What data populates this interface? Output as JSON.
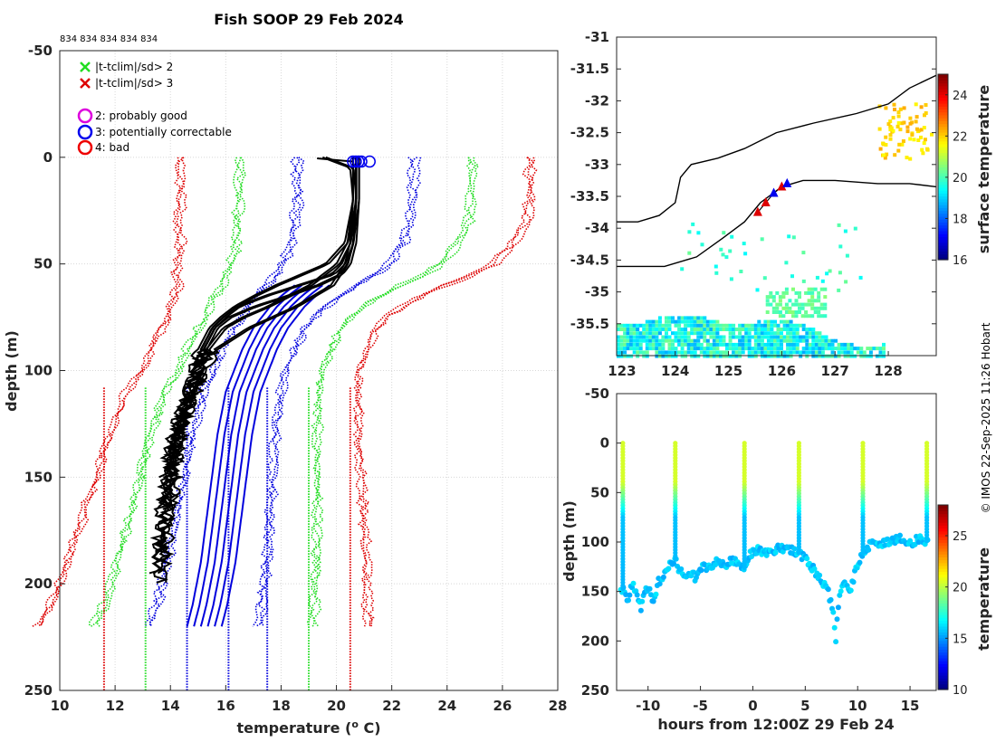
{
  "title": "Fish SOOP 29 Feb 2024",
  "probe_ids": "834 834 834 834 834",
  "credit": "© IMOS 22-Sep-2025 11:26 Hobart",
  "chart_data": [
    {
      "type": "line",
      "name": "profiles",
      "xlabel": "temperature (",
      "xlabel_sup": "o",
      "xlabel_end": " C)",
      "ylabel": "depth (m)",
      "xlim": [
        10,
        28
      ],
      "ylim": [
        -50,
        250
      ],
      "xticks": [
        10,
        12,
        14,
        16,
        18,
        20,
        22,
        24,
        26,
        28
      ],
      "yticks": [
        -50,
        0,
        50,
        100,
        150,
        200,
        250
      ],
      "legend": {
        "position": "top-left",
        "entries": [
          {
            "symbol": "x",
            "color": "#22dd22",
            "label": "|t-tclim|/sd> 2"
          },
          {
            "symbol": "x",
            "color": "#dd0000",
            "label": "|t-tclim|/sd> 3"
          },
          {
            "symbol": "o",
            "color": "#dd00dd",
            "label": "2: probably good"
          },
          {
            "symbol": "o",
            "color": "#0000ee",
            "label": "3: potentially correctable"
          },
          {
            "symbol": "o",
            "color": "#ee0000",
            "label": "4: bad"
          }
        ]
      },
      "climatology": {
        "depths": [
          0,
          10,
          20,
          30,
          40,
          50,
          55,
          60,
          65,
          70,
          75,
          80,
          90,
          100,
          110,
          130,
          150,
          170,
          190,
          210,
          220
        ],
        "mean": [
          20.7,
          20.7,
          20.7,
          20.6,
          20.4,
          20.0,
          19.6,
          19.1,
          18.6,
          18.2,
          17.9,
          17.6,
          17.2,
          16.9,
          16.6,
          16.3,
          16.1,
          15.9,
          15.7,
          15.4,
          15.2
        ],
        "sd": [
          2.1,
          2.1,
          2.1,
          2.1,
          2.0,
          1.9,
          1.8,
          1.6,
          1.5,
          1.4,
          1.3,
          1.3,
          1.3,
          1.3,
          1.4,
          1.5,
          1.6,
          1.7,
          1.8,
          1.9,
          2.0
        ],
        "sd_band_2_color": "#22dd22",
        "sd_band_3_color": "#dd0000",
        "mean_color": "#0000dd"
      },
      "vertical_limits": [
        {
          "x": 11.6,
          "color": "#dd0000"
        },
        {
          "x": 13.1,
          "color": "#22dd22"
        },
        {
          "x": 14.6,
          "color": "#0000dd"
        },
        {
          "x": 16.1,
          "color": "#0000dd"
        },
        {
          "x": 17.5,
          "color": "#0000dd"
        },
        {
          "x": 19.0,
          "color": "#22dd22"
        },
        {
          "x": 20.5,
          "color": "#dd0000"
        }
      ],
      "observed_profiles": [
        {
          "depths": [
            0,
            20,
            40,
            50,
            55,
            60,
            65,
            70,
            75,
            80,
            90,
            100,
            110,
            125,
            140,
            155,
            170,
            185,
            200
          ],
          "temps": [
            20.7,
            20.7,
            20.5,
            20.2,
            19.8,
            18.6,
            17.4,
            16.4,
            15.9,
            15.5,
            15.1,
            15.0,
            14.7,
            14.4,
            14.1,
            14.0,
            13.9,
            13.7,
            13.6
          ]
        },
        {
          "depths": [
            0,
            20,
            40,
            50,
            55,
            60,
            65,
            70,
            75,
            80,
            90,
            100,
            110,
            125,
            140,
            155,
            170,
            185,
            195
          ],
          "temps": [
            20.6,
            20.6,
            20.3,
            19.6,
            18.7,
            17.8,
            17.0,
            16.3,
            15.8,
            15.4,
            15.0,
            14.9,
            14.5,
            14.2,
            13.9,
            13.8,
            13.6,
            13.5,
            13.4
          ]
        },
        {
          "depths": [
            0,
            20,
            40,
            50,
            55,
            60,
            65,
            70,
            75,
            80,
            90,
            100,
            110,
            125,
            140,
            150
          ],
          "temps": [
            20.7,
            20.7,
            20.6,
            20.4,
            20.1,
            19.3,
            18.2,
            17.0,
            16.1,
            15.6,
            15.2,
            15.0,
            14.8,
            14.3,
            14.0,
            13.8
          ]
        },
        {
          "depths": [
            0,
            20,
            40,
            50,
            60,
            70,
            75,
            80,
            90,
            100,
            110,
            125,
            140,
            155,
            165
          ],
          "temps": [
            20.6,
            20.6,
            20.4,
            20.0,
            19.0,
            17.5,
            16.6,
            15.9,
            15.3,
            14.9,
            14.6,
            14.3,
            14.0,
            13.8,
            13.7
          ]
        },
        {
          "depths": [
            0,
            5,
            20,
            40,
            50,
            60,
            70,
            80,
            90,
            100,
            115,
            130,
            150,
            170,
            190
          ],
          "temps": [
            19.5,
            20.5,
            20.6,
            20.5,
            20.3,
            19.8,
            18.5,
            16.8,
            15.6,
            15.1,
            14.7,
            14.3,
            14.0,
            13.8,
            13.6
          ]
        }
      ],
      "observed_color": "#000000",
      "profile_marker_temps": [
        20.7,
        20.6,
        20.8,
        20.9,
        21.2
      ],
      "profile_marker_color": "#0000ee"
    },
    {
      "type": "heatmap",
      "name": "map",
      "colorbar_label": "surface temperature",
      "colorbar_ticks": [
        16,
        18,
        20,
        22,
        24
      ],
      "clim": [
        16,
        25
      ],
      "xlim": [
        122.9,
        128.9
      ],
      "ylim": [
        -36,
        -31
      ],
      "xticks": [
        123,
        124,
        125,
        126,
        127,
        128
      ],
      "yticks": [
        -31,
        -31.5,
        -32,
        -32.5,
        -33,
        -33.5,
        -34,
        -34.5,
        -35,
        -35.5
      ],
      "coastline": [
        [
          122.9,
          -33.9
        ],
        [
          123.3,
          -33.9
        ],
        [
          123.7,
          -33.8
        ],
        [
          124.0,
          -33.6
        ],
        [
          124.1,
          -33.2
        ],
        [
          124.3,
          -33.0
        ],
        [
          124.8,
          -32.9
        ],
        [
          125.3,
          -32.75
        ],
        [
          125.9,
          -32.5
        ],
        [
          126.6,
          -32.35
        ],
        [
          127.4,
          -32.2
        ],
        [
          128.0,
          -32.05
        ],
        [
          128.4,
          -31.8
        ],
        [
          128.9,
          -31.6
        ]
      ],
      "shelf_edge": [
        [
          122.9,
          -34.6
        ],
        [
          123.8,
          -34.6
        ],
        [
          124.4,
          -34.45
        ],
        [
          124.9,
          -34.15
        ],
        [
          125.3,
          -33.9
        ],
        [
          125.6,
          -33.6
        ],
        [
          126.0,
          -33.35
        ],
        [
          126.4,
          -33.25
        ],
        [
          127.0,
          -33.25
        ],
        [
          127.8,
          -33.3
        ],
        [
          128.4,
          -33.3
        ],
        [
          128.9,
          -33.35
        ]
      ],
      "track": [
        [
          125.55,
          -33.75
        ],
        [
          125.7,
          -33.6
        ],
        [
          125.85,
          -33.45
        ],
        [
          126.0,
          -33.35
        ],
        [
          126.1,
          -33.3
        ]
      ],
      "track_colors": [
        "#dd0000",
        "#dd0000",
        "#0000ee",
        "#dd0000",
        "#0000ee"
      ]
    },
    {
      "type": "heatmap",
      "name": "time_depth",
      "xlabel": "hours from 12:00Z 29 Feb 24",
      "ylabel": "depth (m)",
      "colorbar_label": "temperature",
      "colorbar_ticks": [
        10,
        15,
        20,
        25
      ],
      "clim": [
        10,
        28
      ],
      "xlim": [
        -13,
        17.5
      ],
      "ylim": [
        -50,
        250
      ],
      "xticks": [
        -10,
        -5,
        0,
        5,
        10,
        15
      ],
      "yticks": [
        -50,
        0,
        50,
        100,
        150,
        200,
        250
      ],
      "bottom_track": {
        "hours": [
          -12.4,
          -12.0,
          -11.5,
          -11.0,
          -10.7,
          -10.2,
          -9.8,
          -9.5,
          -9.0,
          -8.5,
          -8.2,
          -7.4,
          -7.0,
          -6.5,
          -6.0,
          -5.5,
          -5.0,
          -4.5,
          -4.0,
          -3.5,
          -3.0,
          -2.5,
          -2.0,
          -1.5,
          -0.8,
          -0.3,
          0.5,
          1.5,
          2.5,
          3.5,
          4.4,
          5.0,
          5.8,
          6.5,
          7.2,
          7.7,
          7.9,
          8.2,
          8.8,
          9.3,
          9.8,
          10.5,
          11.2,
          12.0,
          13.0,
          14.0,
          15.0,
          16.0,
          16.6
        ],
        "depths": [
          148,
          160,
          142,
          152,
          168,
          145,
          150,
          162,
          140,
          135,
          125,
          118,
          128,
          132,
          130,
          136,
          126,
          125,
          128,
          118,
          122,
          125,
          118,
          122,
          128,
          112,
          108,
          110,
          106,
          108,
          112,
          116,
          128,
          140,
          150,
          175,
          200,
          160,
          138,
          148,
          130,
          112,
          102,
          103,
          100,
          95,
          102,
          96,
          100
        ]
      },
      "casts": [
        -12.4,
        -7.4,
        -0.8,
        4.4,
        10.5,
        16.6
      ]
    }
  ]
}
